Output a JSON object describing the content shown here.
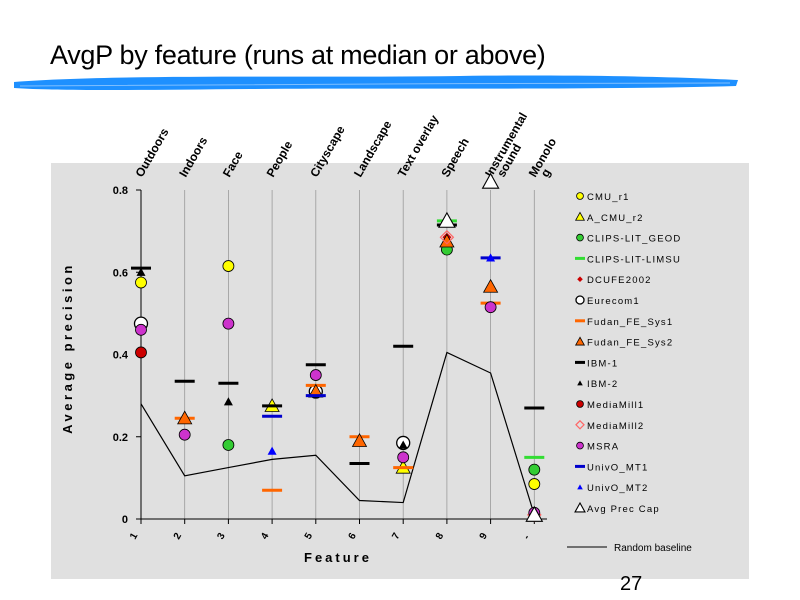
{
  "slide": {
    "title": "AvgP by feature (runs at median or above)",
    "page_number": "27",
    "accent_color": "#1e90ff"
  },
  "chart_data": {
    "type": "scatter",
    "xlabel": "Feature",
    "ylabel": "Average precision",
    "ylim": [
      0,
      0.8
    ],
    "yticks": [
      0,
      0.2,
      0.4,
      0.6,
      0.8
    ],
    "grid": "vertical",
    "legend_position": "right",
    "categories": [
      "1",
      "2",
      "3",
      "4",
      "5",
      "6",
      "7",
      "8",
      "9",
      "-"
    ],
    "feature_names": [
      "Outdoors",
      "Indoors",
      "Face",
      "People",
      "Cityscape",
      "Landscape",
      "Text overlay",
      "Speech",
      "Instrumental sound",
      "Monolog"
    ],
    "feature_name_lines": [
      [
        "Outdoors"
      ],
      [
        "Indoors"
      ],
      [
        "Face"
      ],
      [
        "People"
      ],
      [
        "Cityscape"
      ],
      [
        "Landscape"
      ],
      [
        "Text overlay"
      ],
      [
        "Speech"
      ],
      [
        "Instrumental",
        "sound"
      ],
      [
        "Monolo",
        "g"
      ]
    ],
    "series": [
      {
        "name": "CMU_r1",
        "marker": "circle",
        "color": "#ffff00",
        "points": [
          [
            1,
            0.575
          ],
          [
            3,
            0.615
          ],
          [
            10,
            0.085
          ]
        ]
      },
      {
        "name": "A_CMU_r2",
        "marker": "triangle",
        "color": "#ffff00",
        "points": [
          [
            4,
            0.275
          ],
          [
            7,
            0.125
          ]
        ]
      },
      {
        "name": "CLIPS-LIT_GEOD",
        "marker": "circle",
        "color": "#33cc33",
        "points": [
          [
            3,
            0.18
          ],
          [
            8,
            0.655
          ],
          [
            10,
            0.12
          ]
        ]
      },
      {
        "name": "CLIPS-LIT-LIMSU",
        "marker": "dash",
        "color": "#33dd33",
        "points": [
          [
            8,
            0.725
          ],
          [
            10,
            0.15
          ]
        ]
      },
      {
        "name": "DCUFE2002",
        "marker": "diamond",
        "color": "#cc0000",
        "points": [
          [
            8,
            0.685
          ]
        ]
      },
      {
        "name": "Eurecom1",
        "marker": "open-circle",
        "color": "#000000",
        "points": [
          [
            1,
            0.475
          ],
          [
            5,
            0.31
          ],
          [
            7,
            0.185
          ]
        ]
      },
      {
        "name": "Fudan_FE_Sys1",
        "marker": "dash",
        "color": "#ff6600",
        "points": [
          [
            2,
            0.245
          ],
          [
            4,
            0.07
          ],
          [
            5,
            0.325
          ],
          [
            6,
            0.2
          ],
          [
            7,
            0.125
          ],
          [
            9,
            0.525
          ]
        ]
      },
      {
        "name": "Fudan_FE_Sys2",
        "marker": "triangle",
        "color": "#ff6600",
        "points": [
          [
            2,
            0.245
          ],
          [
            5,
            0.31
          ],
          [
            6,
            0.19
          ],
          [
            8,
            0.675
          ],
          [
            9,
            0.565
          ]
        ]
      },
      {
        "name": "IBM-1",
        "marker": "dash",
        "color": "#000000",
        "points": [
          [
            1,
            0.61
          ],
          [
            2,
            0.335
          ],
          [
            3,
            0.33
          ],
          [
            4,
            0.275
          ],
          [
            5,
            0.375
          ],
          [
            6,
            0.135
          ],
          [
            7,
            0.42
          ],
          [
            8,
            0.715
          ],
          [
            10,
            0.27
          ]
        ]
      },
      {
        "name": "IBM-2",
        "marker": "small-triangle",
        "color": "#000000",
        "points": [
          [
            1,
            0.6
          ],
          [
            3,
            0.285
          ],
          [
            7,
            0.18
          ]
        ]
      },
      {
        "name": "MediaMill1",
        "marker": "circle",
        "color": "#cc0000",
        "points": [
          [
            1,
            0.405
          ]
        ]
      },
      {
        "name": "MediaMill2",
        "marker": "open-diamond",
        "color": "#ff6666",
        "points": [
          [
            8,
            0.685
          ],
          [
            10,
            0.01
          ]
        ]
      },
      {
        "name": "MSRA",
        "marker": "circle",
        "color": "#cc33cc",
        "points": [
          [
            1,
            0.46
          ],
          [
            2,
            0.205
          ],
          [
            3,
            0.475
          ],
          [
            5,
            0.35
          ],
          [
            7,
            0.15
          ],
          [
            9,
            0.515
          ],
          [
            10,
            0.015
          ]
        ]
      },
      {
        "name": "UnivO_MT1",
        "marker": "dash",
        "color": "#0000cc",
        "points": [
          [
            4,
            0.25
          ],
          [
            5,
            0.3
          ],
          [
            9,
            0.635
          ]
        ]
      },
      {
        "name": "UnivO_MT2",
        "marker": "small-triangle",
        "color": "#0000ff",
        "points": [
          [
            4,
            0.165
          ],
          [
            9,
            0.635
          ]
        ]
      },
      {
        "name": "Avg Prec Cap",
        "marker": "open-triangle",
        "color": "#000000",
        "points": [
          [
            8,
            0.725
          ],
          [
            9,
            0.82
          ],
          [
            10,
            0.01
          ]
        ]
      }
    ],
    "baseline": {
      "name": "Random baseline",
      "values": [
        0.28,
        0.105,
        0.125,
        0.145,
        0.155,
        0.045,
        0.04,
        0.405,
        0.355,
        0.01
      ]
    }
  }
}
